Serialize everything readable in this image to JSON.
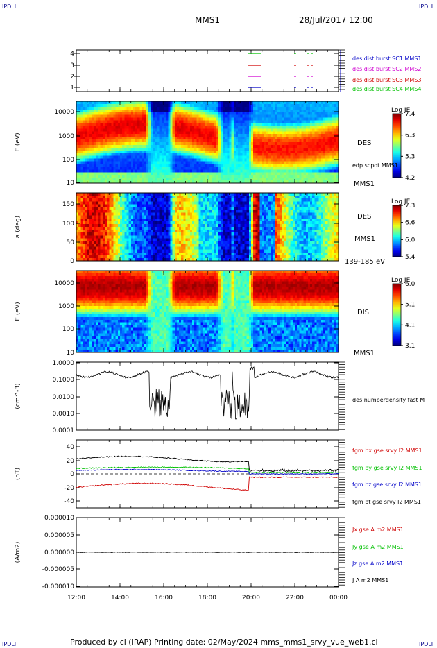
{
  "corner_label": "IPDLI",
  "header": {
    "spacecraft": "MMS1",
    "date_time": "28/Jul/2017 12:00"
  },
  "footer": {
    "text": "Produced by cl (IRAP)   Printing date: 02/May/2024   mms_mms1_srvy_vue_web1.cl"
  },
  "colors": {
    "red": "#d00000",
    "green": "#00c000",
    "magenta": "#d000d0",
    "blue": "#0000c8",
    "black": "#000000"
  },
  "x_axis": {
    "tick_labels": [
      "12:00",
      "14:00",
      "16:00",
      "18:00",
      "20:00",
      "22:00",
      "00:00"
    ]
  },
  "chart_data": [
    {
      "type": "line",
      "panel": "burst",
      "yticks": [
        "1",
        "2",
        "3",
        "4"
      ],
      "series": [
        {
          "name": "des dist burst SC1 MMS1",
          "color": "#0000c8"
        },
        {
          "name": "des dist burst SC2 MMS2",
          "color": "#d000d0"
        },
        {
          "name": "des dist burst SC3 MMS3",
          "color": "#d00000"
        },
        {
          "name": "des dist burst SC4 MMS4",
          "color": "#00c000"
        }
      ]
    },
    {
      "type": "heatmap",
      "panel": "des_energy",
      "ylabel": "E (eV)",
      "yticks": [
        "10",
        "100",
        "1000",
        "10000"
      ],
      "right_labels": [
        "DES",
        "edp scpot MMS1",
        "MMS1"
      ],
      "colorbar": {
        "title": "Log JE",
        "ticks": [
          "7.4",
          "6.3",
          "5.3",
          "4.2"
        ]
      }
    },
    {
      "type": "heatmap",
      "panel": "des_pitch",
      "ylabel": "a (deg)",
      "yticks": [
        "0",
        "50",
        "100",
        "150"
      ],
      "right_labels": [
        "DES",
        "MMS1",
        "139-185 eV"
      ],
      "colorbar": {
        "title": "Log JE",
        "ticks": [
          "7.3",
          "6.6",
          "6.0",
          "5.4"
        ]
      }
    },
    {
      "type": "heatmap",
      "panel": "dis_energy",
      "ylabel": "E (eV)",
      "yticks": [
        "10",
        "100",
        "1000",
        "10000"
      ],
      "right_labels": [
        "DIS",
        "MMS1"
      ],
      "colorbar": {
        "title": "Log JE",
        "ticks": [
          "6.0",
          "5.1",
          "4.1",
          "3.1"
        ]
      }
    },
    {
      "type": "line",
      "panel": "density",
      "ylabel": "(cm^-3)",
      "yticks": [
        "0.0001",
        "0.0010",
        "0.0100",
        "0.1000",
        "1.0000"
      ],
      "series": [
        {
          "name": "des numberdensity fast M",
          "color": "#000000"
        }
      ]
    },
    {
      "type": "line",
      "panel": "bfield",
      "ylabel": "(nT)",
      "yticks": [
        "-40",
        "-20",
        "0",
        "20",
        "40"
      ],
      "ylim": [
        -48,
        48
      ],
      "series": [
        {
          "name": "fgm bx gse srvy l2 MMS1",
          "color": "#d00000"
        },
        {
          "name": "fgm by gse srvy l2 MMS1",
          "color": "#00c000"
        },
        {
          "name": "fgm bz gse srvy l2 MMS1",
          "color": "#0000c8"
        },
        {
          "name": "fgm bt gse srvy l2 MMS1",
          "color": "#000000"
        }
      ]
    },
    {
      "type": "line",
      "panel": "current",
      "ylabel": "(A/m2)",
      "yticks": [
        "-0.000010",
        "-0.000005",
        "0.000000",
        "0.000005",
        "0.000010"
      ],
      "ylim": [
        -1e-05,
        1e-05
      ],
      "series": [
        {
          "name": "Jx gse A m2 MMS1",
          "color": "#d00000"
        },
        {
          "name": "Jy gse A m2 MMS1",
          "color": "#00c000"
        },
        {
          "name": "Jz gse A m2 MMS1",
          "color": "#0000c8"
        },
        {
          "name": "J A m2 MMS1",
          "color": "#000000"
        }
      ]
    }
  ]
}
